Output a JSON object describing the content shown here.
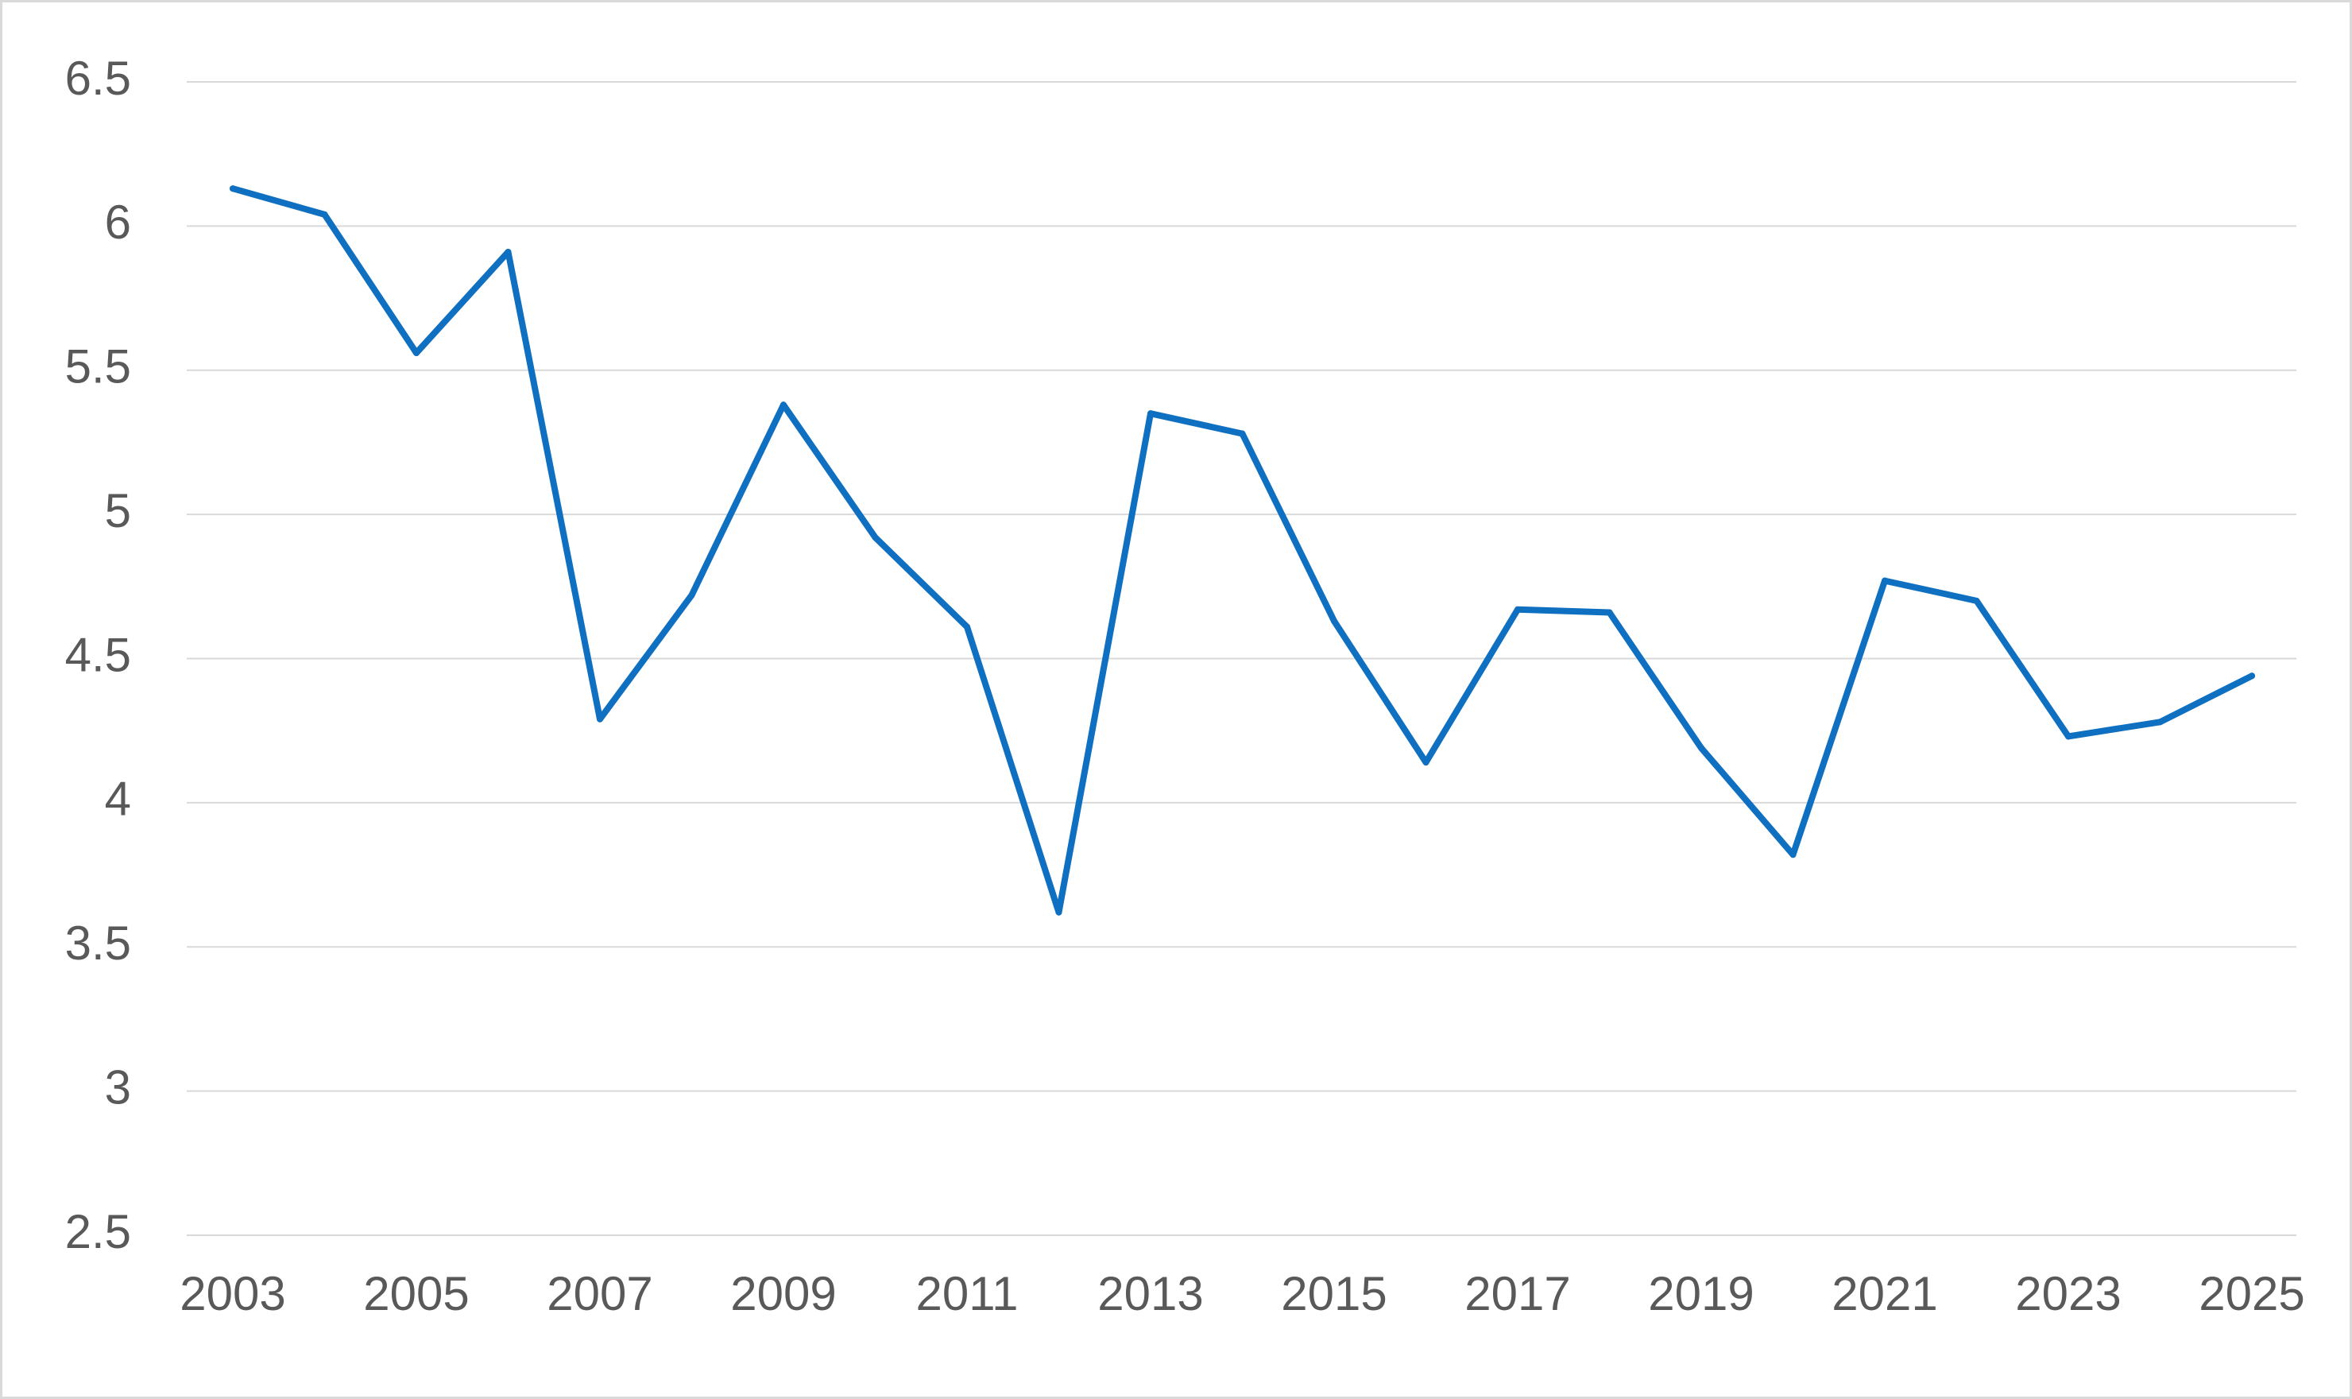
{
  "chart_data": {
    "type": "line",
    "title": "",
    "xlabel": "",
    "ylabel": "",
    "x": [
      "2003",
      "2004",
      "2005",
      "2006",
      "2007",
      "2008",
      "2009",
      "2010",
      "2011",
      "2012",
      "2013",
      "2014",
      "2015",
      "2016",
      "2017",
      "2018",
      "2019",
      "2020",
      "2021",
      "2022",
      "2023",
      "2024",
      "2025"
    ],
    "x_tick_labels": [
      "2003",
      "2005",
      "2007",
      "2009",
      "2011",
      "2013",
      "2015",
      "2017",
      "2019",
      "2021",
      "2023",
      "2025"
    ],
    "y_tick_labels": [
      "2.5",
      "3",
      "3.5",
      "4",
      "4.5",
      "5",
      "5.5",
      "6",
      "6.5"
    ],
    "ylim": [
      2.5,
      6.5
    ],
    "grid": true,
    "legend": "none",
    "series": [
      {
        "color": "#0f6fc0",
        "values": [
          6.13,
          6.04,
          5.56,
          5.91,
          4.29,
          4.72,
          5.38,
          4.92,
          4.61,
          3.62,
          5.35,
          5.28,
          4.63,
          4.14,
          4.67,
          4.66,
          4.19,
          3.82,
          4.77,
          4.7,
          4.23,
          4.28,
          4.44
        ]
      }
    ]
  }
}
